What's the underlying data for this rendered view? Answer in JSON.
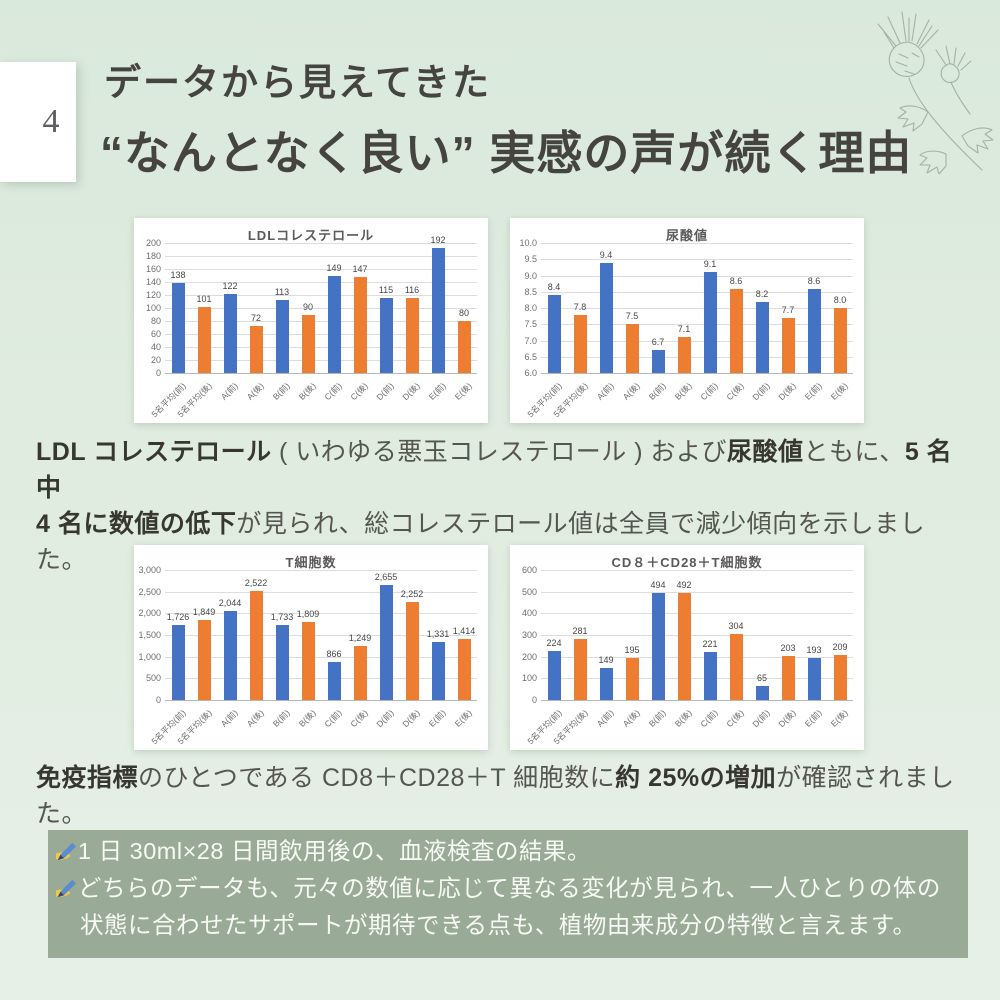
{
  "page": {
    "background_color": "#dfecdf",
    "page_number": "4",
    "title_line1": "データから見えてきた",
    "title_line2": "“なんとなく良い” 実感の声が続く理由",
    "decoration": "thistle-line-drawing"
  },
  "paragraphs": {
    "results1": {
      "lines": [
        [
          {
            "text": "LDL コレステロール",
            "bold": true
          },
          {
            "text": " ( いわゆる悪玉コレステロール ) および",
            "bold": false
          },
          {
            "text": "尿酸値",
            "bold": true
          },
          {
            "text": "ともに、",
            "bold": false
          },
          {
            "text": "5 名中",
            "bold": true
          }
        ],
        [
          {
            "text": "4 名に数値の低下",
            "bold": true
          },
          {
            "text": "が見られ、総コレステロール値は全員で減少傾向を示しました。",
            "bold": false
          }
        ]
      ]
    },
    "results2": {
      "lines": [
        [
          {
            "text": "免疫指標",
            "bold": true
          },
          {
            "text": "のひとつである CD8＋CD28＋T 細胞数に",
            "bold": false
          },
          {
            "text": "約 25%の増加",
            "bold": true
          },
          {
            "text": "が確認されました。",
            "bold": false
          }
        ]
      ]
    }
  },
  "footer": {
    "background_color": "#99aa96",
    "icon": "writing-hand-icon",
    "items": [
      "1 日 30ml×28 日間飲用後の、血液検査の結果。",
      "どちらのデータも、元々の数値に応じて異なる変化が見られ、一人ひとりの体の状態に合わせたサポートが期待できる点も、植物由来成分の特徴と言えます。"
    ]
  },
  "chart_data": [
    {
      "type": "bar",
      "title": "LDLコレステロール",
      "categories": [
        "5名平均(前)",
        "5名平均(後)",
        "A(前)",
        "A(後)",
        "B(前)",
        "B(後)",
        "C(前)",
        "C(後)",
        "D(前)",
        "D(後)",
        "E(前)",
        "E(後)"
      ],
      "values": [
        138,
        101,
        122,
        72,
        113,
        90,
        149,
        147,
        115,
        116,
        192,
        80
      ],
      "ylim": [
        0,
        200
      ],
      "ystep": 20,
      "y_format": "int",
      "grid": true,
      "legend": "none",
      "colors": [
        "#4472C4",
        "#ED7D31"
      ]
    },
    {
      "type": "bar",
      "title": "尿酸値",
      "categories": [
        "5名平均(前)",
        "5名平均(後)",
        "A(前)",
        "A(後)",
        "B(前)",
        "B(後)",
        "C(前)",
        "C(後)",
        "D(前)",
        "D(後)",
        "E(前)",
        "E(後)"
      ],
      "values": [
        8.4,
        7.8,
        9.4,
        7.5,
        6.7,
        7.1,
        9.1,
        8.6,
        8.2,
        7.7,
        8.6,
        8.0
      ],
      "ylim": [
        6.0,
        10.0
      ],
      "ystep": 0.5,
      "y_format": "dec1",
      "grid": true,
      "legend": "none",
      "colors": [
        "#4472C4",
        "#ED7D31"
      ]
    },
    {
      "type": "bar",
      "title": "T細胞数",
      "categories": [
        "5名平均(前)",
        "5名平均(後)",
        "A(前)",
        "A(後)",
        "B(前)",
        "B(後)",
        "C(前)",
        "C(後)",
        "D(前)",
        "D(後)",
        "E(前)",
        "E(後)"
      ],
      "values": [
        1726,
        1849,
        2044,
        2522,
        1733,
        1809,
        866,
        1249,
        2655,
        2252,
        1331,
        1414
      ],
      "ylim": [
        0,
        3000
      ],
      "ystep": 500,
      "y_format": "comma",
      "grid": true,
      "legend": "none",
      "colors": [
        "#4472C4",
        "#ED7D31"
      ]
    },
    {
      "type": "bar",
      "title": "CD８＋CD28＋T細胞数",
      "categories": [
        "5名平均(前)",
        "5名平均(後)",
        "A(前)",
        "A(後)",
        "B(前)",
        "B(後)",
        "C(前)",
        "C(後)",
        "D(前)",
        "D(後)",
        "E(前)",
        "E(後)"
      ],
      "values": [
        224,
        281,
        149,
        195,
        494,
        492,
        221,
        304,
        65,
        203,
        193,
        209
      ],
      "ylim": [
        0,
        600
      ],
      "ystep": 100,
      "y_format": "int",
      "grid": true,
      "legend": "none",
      "colors": [
        "#4472C4",
        "#ED7D31"
      ]
    }
  ]
}
